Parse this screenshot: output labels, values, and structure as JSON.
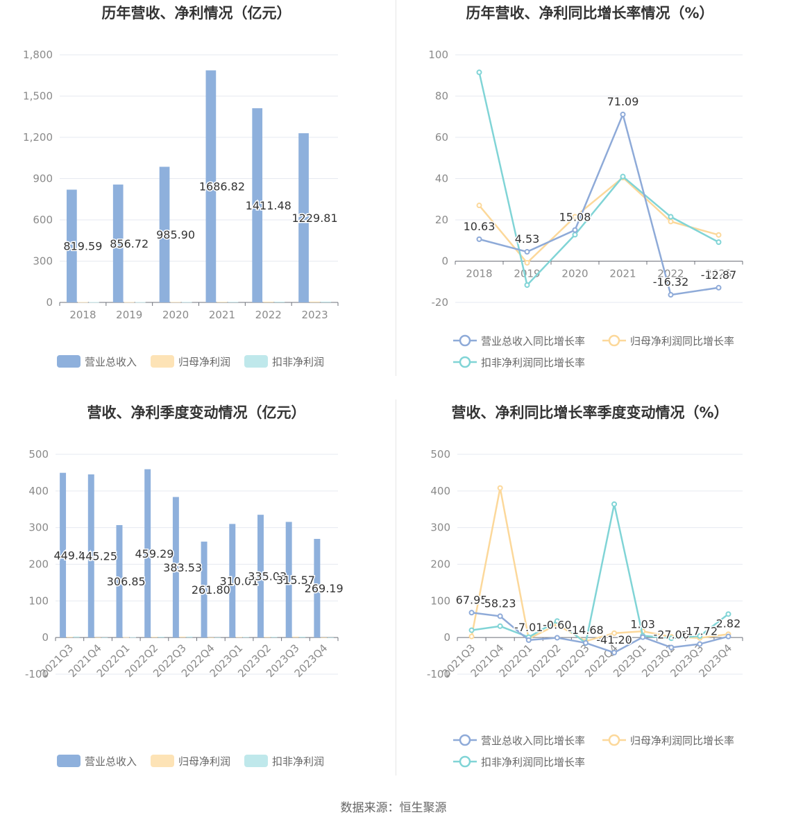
{
  "footer": {
    "source": "数据来源：恒生聚源"
  },
  "colors": {
    "revenue": "#8eb0dc",
    "net_profit": "#fde3b6",
    "deducted_profit": "#bfe8eb",
    "revenue_line": "#8eaad8",
    "net_profit_line": "#fcd89a",
    "deducted_line": "#80d4d6"
  },
  "chart_data": [
    {
      "type": "bar",
      "title": "历年营收、净利情况（亿元）",
      "categories": [
        "2018",
        "2019",
        "2020",
        "2021",
        "2022",
        "2023"
      ],
      "ylim": [
        0,
        1800
      ],
      "yticks": [
        0,
        300,
        600,
        900,
        1200,
        1500,
        1800
      ],
      "ytick_labels": [
        "0",
        "300",
        "600",
        "900",
        "1,200",
        "1,500",
        "1,800"
      ],
      "grid": true,
      "legend_position": "bottom",
      "series": [
        {
          "name": "营业总收入",
          "values": [
            819.59,
            856.72,
            985.9,
            1686.82,
            1411.48,
            1229.81
          ],
          "labels": [
            "819.59",
            "856.72",
            "985.90",
            "1686.82",
            "1411.48",
            "1229.81"
          ]
        },
        {
          "name": "归母净利润",
          "values": [
            2.8,
            2.9,
            3.4,
            4.2,
            5.4,
            6.1
          ]
        },
        {
          "name": "扣非净利润",
          "values": [
            2.5,
            2.6,
            3.1,
            3.9,
            5.1,
            5.6
          ]
        }
      ]
    },
    {
      "type": "line",
      "title": "历年营收、净利同比增长率情况（%）",
      "categories": [
        "2018",
        "2019",
        "2020",
        "2021",
        "2022",
        "2023"
      ],
      "ylim": [
        -20,
        100
      ],
      "yticks": [
        -20,
        0,
        20,
        40,
        60,
        80,
        100
      ],
      "ytick_labels": [
        "-20",
        "0",
        "20",
        "40",
        "60",
        "80",
        "100"
      ],
      "grid": true,
      "legend_position": "bottom",
      "series": [
        {
          "name": "营业总收入同比增长率",
          "values": [
            10.63,
            4.53,
            15.08,
            71.09,
            -16.32,
            -12.87
          ],
          "labels": [
            "10.63",
            "4.53",
            "15.08",
            "71.09",
            "-16.32",
            "-12.87"
          ]
        },
        {
          "name": "归母净利润同比增长率",
          "values": [
            27.0,
            -0.8,
            21.5,
            40.5,
            19.2,
            12.7
          ]
        },
        {
          "name": "扣非净利润同比增长率",
          "values": [
            91.5,
            -11.6,
            12.8,
            41.0,
            21.5,
            9.2
          ]
        }
      ]
    },
    {
      "type": "bar",
      "title": "营收、净利季度变动情况（亿元）",
      "categories": [
        "2021Q3",
        "2021Q4",
        "2022Q1",
        "2022Q2",
        "2022Q3",
        "2022Q4",
        "2023Q1",
        "2023Q2",
        "2023Q3",
        "2023Q4"
      ],
      "ylim": [
        -100,
        500
      ],
      "yticks": [
        -100,
        0,
        100,
        200,
        300,
        400,
        500
      ],
      "ytick_labels": [
        "-100",
        "0",
        "100",
        "200",
        "300",
        "400",
        "500"
      ],
      "grid": true,
      "legend_position": "bottom",
      "series": [
        {
          "name": "营业总收入",
          "values": [
            449.5,
            445.25,
            306.85,
            459.29,
            383.53,
            261.8,
            310.01,
            335.03,
            315.57,
            269.19
          ],
          "labels": [
            "449.5",
            "445.25",
            "306.85",
            "459.29",
            "383.53",
            "261.80",
            "310.01",
            "335.03",
            "315.57",
            "269.19"
          ]
        },
        {
          "name": "归母净利润",
          "values": [
            2.0,
            -0.5,
            1.0,
            2.0,
            2.5,
            -0.8,
            1.6,
            1.8,
            2.5,
            -0.6
          ]
        },
        {
          "name": "扣非净利润",
          "values": [
            2.8,
            -0.5,
            1.2,
            2.2,
            2.6,
            -0.9,
            1.7,
            1.9,
            2.3,
            -0.4
          ]
        }
      ]
    },
    {
      "type": "line",
      "title": "营收、净利同比增长率季度变动情况（%）",
      "categories": [
        "2021Q3",
        "2021Q4",
        "2022Q1",
        "2022Q2",
        "2022Q3",
        "2022Q4",
        "2023Q1",
        "2023Q2",
        "2023Q3",
        "2023Q4"
      ],
      "ylim": [
        -100,
        500
      ],
      "yticks": [
        -100,
        0,
        100,
        200,
        300,
        400,
        500
      ],
      "ytick_labels": [
        "-100",
        "0",
        "100",
        "200",
        "300",
        "400",
        "500"
      ],
      "grid": true,
      "legend_position": "bottom",
      "series": [
        {
          "name": "营业总收入同比增长率",
          "values": [
            67.95,
            58.23,
            -7.01,
            -0.6,
            -14.68,
            -41.2,
            1.03,
            -27.06,
            -17.72,
            2.82
          ],
          "labels": [
            "67.95",
            "58.23",
            "-7.01",
            "-0.60",
            "-14.68",
            "-41.20",
            "1.03",
            "-27.06",
            "-17.72",
            "2.82"
          ]
        },
        {
          "name": "归母净利润同比增长率",
          "values": [
            3,
            408,
            -3,
            35,
            -10,
            12,
            17,
            2,
            -1,
            9
          ]
        },
        {
          "name": "扣非净利润同比增长率",
          "values": [
            20,
            31,
            1,
            45,
            -15,
            364,
            5,
            -2,
            4,
            64
          ]
        }
      ]
    }
  ]
}
